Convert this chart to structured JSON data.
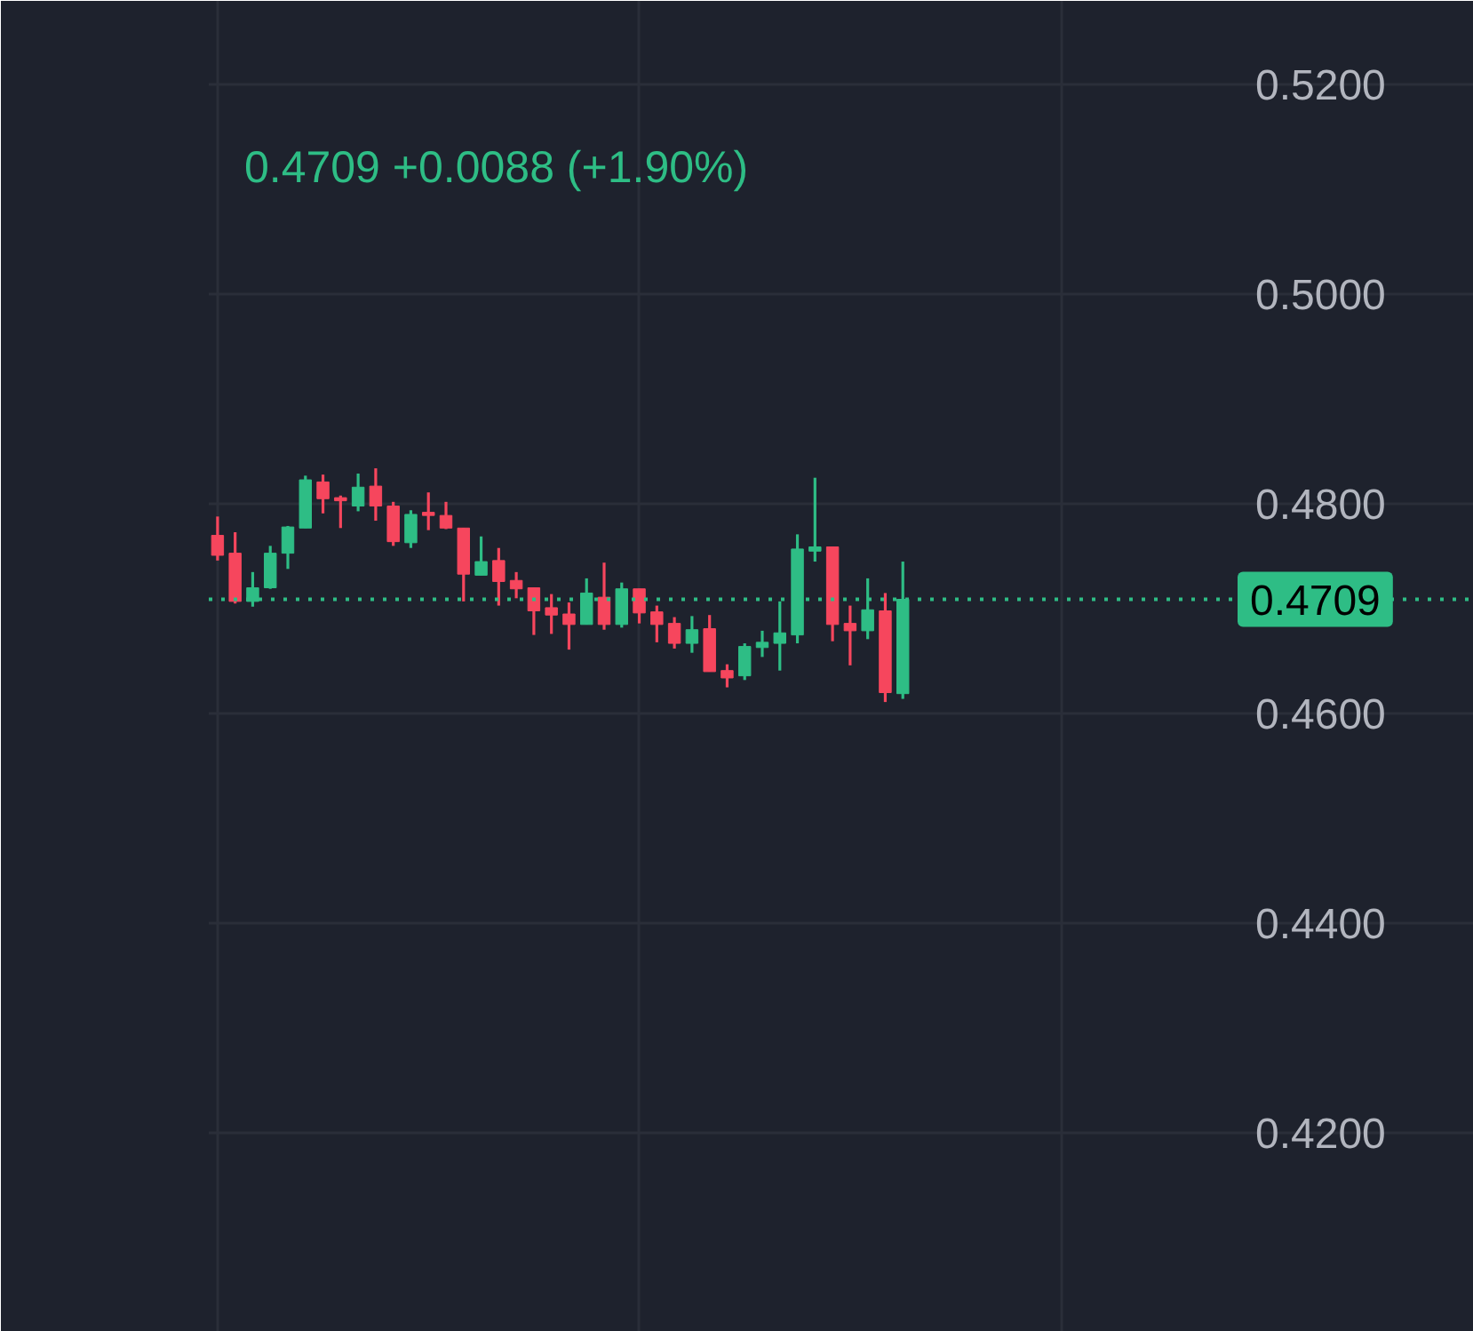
{
  "chart_data": {
    "type": "candlestick",
    "subtitle": "0.4709 +0.0088 (+1.90%)",
    "categories": [
      null,
      null,
      null,
      null,
      null,
      null,
      null,
      null,
      null,
      null,
      null,
      null,
      null,
      null,
      null,
      null,
      null,
      null,
      null,
      null,
      null,
      null,
      null,
      null,
      null,
      null,
      null,
      null,
      null,
      null,
      null,
      null,
      null,
      null,
      null,
      null,
      null,
      null,
      null,
      null,
      null,
      null,
      null,
      null,
      null,
      null,
      null,
      null,
      null,
      null,
      null,
      null,
      null,
      null,
      null,
      null,
      null,
      null,
      null,
      null,
      null,
      null,
      null,
      null,
      null,
      null,
      null,
      null,
      null,
      null,
      null,
      null
    ],
    "ohlc": [
      [
        0.477,
        0.4788,
        0.4746,
        0.4751
      ],
      [
        0.4753,
        0.4773,
        0.4705,
        0.4707
      ],
      [
        0.4707,
        0.4735,
        0.4702,
        0.472
      ],
      [
        0.472,
        0.476,
        0.4719,
        0.4753
      ],
      [
        0.4753,
        0.4779,
        0.4738,
        0.4778
      ],
      [
        0.4777,
        0.4827,
        0.4777,
        0.4823
      ],
      [
        0.4821,
        0.4828,
        0.4791,
        0.4805
      ],
      [
        0.4806,
        0.4808,
        0.4777,
        0.4803
      ],
      [
        0.4798,
        0.4829,
        0.4793,
        0.4816
      ],
      [
        0.4817,
        0.4834,
        0.4784,
        0.4798
      ],
      [
        0.4798,
        0.4802,
        0.476,
        0.4764
      ],
      [
        0.4763,
        0.4794,
        0.4758,
        0.479
      ],
      [
        0.4792,
        0.4811,
        0.4775,
        0.4789
      ],
      [
        0.4789,
        0.4802,
        0.4776,
        0.4777
      ],
      [
        0.4777,
        0.4777,
        0.4707,
        0.4733
      ],
      [
        0.4732,
        0.4769,
        0.4732,
        0.4745
      ],
      [
        0.4746,
        0.4758,
        0.4703,
        0.4726
      ],
      [
        0.4727,
        0.4735,
        0.471,
        0.4719
      ],
      [
        0.472,
        0.472,
        0.4675,
        0.4698
      ],
      [
        0.4701,
        0.4714,
        0.4676,
        0.4694
      ],
      [
        0.4695,
        0.4706,
        0.4661,
        0.4685
      ],
      [
        0.4685,
        0.4729,
        0.4685,
        0.4715
      ],
      [
        0.4711,
        0.4744,
        0.468,
        0.4685
      ],
      [
        0.4685,
        0.4725,
        0.4682,
        0.4719
      ],
      [
        0.4719,
        0.4719,
        0.4686,
        0.4696
      ],
      [
        0.4697,
        0.4703,
        0.4668,
        0.4685
      ],
      [
        0.4686,
        0.4692,
        0.4662,
        0.4667
      ],
      [
        0.4667,
        0.4693,
        0.4658,
        0.468
      ],
      [
        0.4681,
        0.4694,
        0.464,
        0.464
      ],
      [
        0.4641,
        0.4647,
        0.4625,
        0.4634
      ],
      [
        0.4636,
        0.4667,
        0.4632,
        0.4664
      ],
      [
        0.4663,
        0.4679,
        0.4654,
        0.4668
      ],
      [
        0.4667,
        0.4707,
        0.4641,
        0.4677
      ],
      [
        0.4675,
        0.4771,
        0.4667,
        0.4757
      ],
      [
        0.4755,
        0.4825,
        0.4745,
        0.4759
      ],
      [
        0.4759,
        0.4759,
        0.4669,
        0.4685
      ],
      [
        0.4686,
        0.4703,
        0.4646,
        0.4679
      ],
      [
        0.4679,
        0.4729,
        0.4671,
        0.4699
      ],
      [
        0.4698,
        0.4715,
        0.4611,
        0.462
      ],
      [
        0.4619,
        0.4745,
        0.4614,
        0.4709
      ],
      null,
      null,
      null,
      null,
      null,
      null,
      null,
      null,
      null,
      null,
      null,
      null,
      null,
      null,
      null,
      null,
      null,
      null,
      null,
      null,
      null,
      null,
      null,
      null,
      null,
      null,
      null,
      null,
      null,
      null,
      null,
      null
    ],
    "colors": [
      "#f6465d",
      "#f6465d",
      "#2ebd85",
      "#2ebd85",
      "#2ebd85",
      "#2ebd85",
      "#f6465d",
      "#f6465d",
      "#2ebd85",
      "#f6465d",
      "#f6465d",
      "#2ebd85",
      "#f6465d",
      "#f6465d",
      "#f6465d",
      "#2ebd85",
      "#f6465d",
      "#f6465d",
      "#f6465d",
      "#f6465d",
      "#f6465d",
      "#2ebd85",
      "#f6465d",
      "#2ebd85",
      "#f6465d",
      "#f6465d",
      "#f6465d",
      "#2ebd85",
      "#f6465d",
      "#f6465d",
      "#2ebd85",
      "#2ebd85",
      "#2ebd85",
      "#2ebd85",
      "#2ebd85",
      "#f6465d",
      "#f6465d",
      "#2ebd85",
      "#f6465d",
      "#2ebd85",
      null,
      null,
      null,
      null,
      null,
      null,
      null,
      null,
      null,
      null,
      null,
      null,
      null,
      null,
      null,
      null,
      null,
      null,
      null,
      null,
      null,
      null,
      null,
      null,
      null,
      null,
      null,
      null,
      null,
      null,
      null,
      null
    ],
    "ylim": [
      0.401,
      0.528
    ],
    "yticks": [
      {
        "value": 0.42,
        "label": "0.4200"
      },
      {
        "value": 0.44,
        "label": "0.4400"
      },
      {
        "value": 0.46,
        "label": "0.4600"
      },
      {
        "value": 0.48,
        "label": "0.4800"
      },
      {
        "value": 0.5,
        "label": "0.5000"
      },
      {
        "value": 0.52,
        "label": "0.5200"
      }
    ],
    "ref_lines": [
      {
        "axis": "y",
        "value": 0.4709,
        "label": "0.4709",
        "color": "#2ebd85",
        "line_style": "dotted"
      }
    ],
    "grid": true,
    "tick_labels": "y"
  }
}
